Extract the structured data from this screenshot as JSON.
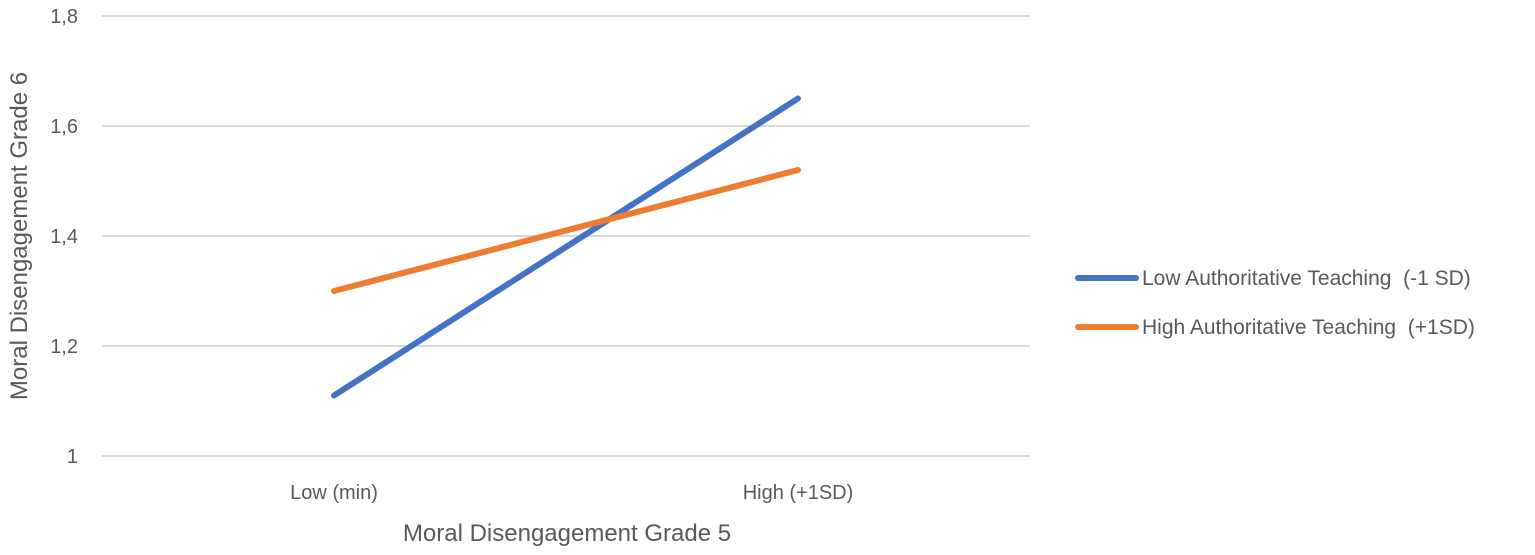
{
  "chart_data": {
    "type": "line",
    "categories": [
      "Low (min)",
      "High (+1SD)"
    ],
    "series": [
      {
        "name": "Low Authoritative Teaching  (-1 SD)",
        "color": "#4472C4",
        "values": [
          1.11,
          1.65
        ]
      },
      {
        "name": "High Authoritative Teaching  (+1SD)",
        "color": "#ED7D31",
        "values": [
          1.3,
          1.52
        ]
      }
    ],
    "xlabel": "Moral Disengagement Grade 5",
    "ylabel": "Moral Disengagement Grade 6",
    "ylim": [
      1,
      1.8
    ],
    "yticks": [
      {
        "value": 1.0,
        "label": "1"
      },
      {
        "value": 1.2,
        "label": "1,2"
      },
      {
        "value": 1.4,
        "label": "1,4"
      },
      {
        "value": 1.6,
        "label": "1,6"
      },
      {
        "value": 1.8,
        "label": "1,8"
      }
    ],
    "grid": true,
    "gridline_color": "#D9D9D9",
    "legend_position": "right"
  }
}
